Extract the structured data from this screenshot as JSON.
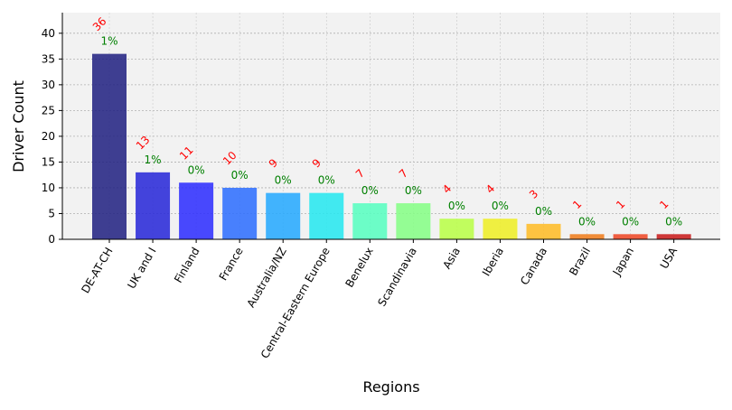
{
  "chart_data": {
    "type": "bar",
    "title": "",
    "xlabel": "Regions",
    "ylabel": "Driver Count",
    "ylim": [
      0,
      44
    ],
    "yticks": [
      0,
      5,
      10,
      15,
      20,
      25,
      30,
      35,
      40
    ],
    "grid": true,
    "categories": [
      "DE-AT-CH",
      "UK and I",
      "Finland",
      "France",
      "Australia/NZ",
      "Central-Eastern Europe",
      "Benelux",
      "Scandinavia",
      "Asia",
      "Iberia",
      "Canada",
      "Brazil",
      "Japan",
      "USA"
    ],
    "values": [
      36,
      13,
      11,
      10,
      9,
      9,
      7,
      7,
      4,
      4,
      3,
      1,
      1,
      1
    ],
    "count_labels": [
      "36",
      "13",
      "11",
      "10",
      "9",
      "9",
      "7",
      "7",
      "4",
      "4",
      "3",
      "1",
      "1",
      "1"
    ],
    "percent_labels": [
      "1%",
      "1%",
      "0%",
      "0%",
      "0%",
      "0%",
      "0%",
      "0%",
      "0%",
      "0%",
      "0%",
      "0%",
      "0%",
      "0%"
    ],
    "colors": [
      "#1f1f80",
      "#2424d8",
      "#2a2aff",
      "#2a6cff",
      "#22a8ff",
      "#22e8f0",
      "#55ffc0",
      "#84ff84",
      "#b8ff44",
      "#eeee22",
      "#ffbb22",
      "#f07a18",
      "#ee4422",
      "#c81818"
    ],
    "count_label_color": "#ff0000",
    "percent_label_color": "#008000",
    "plot_background": "#f2f2f2"
  }
}
